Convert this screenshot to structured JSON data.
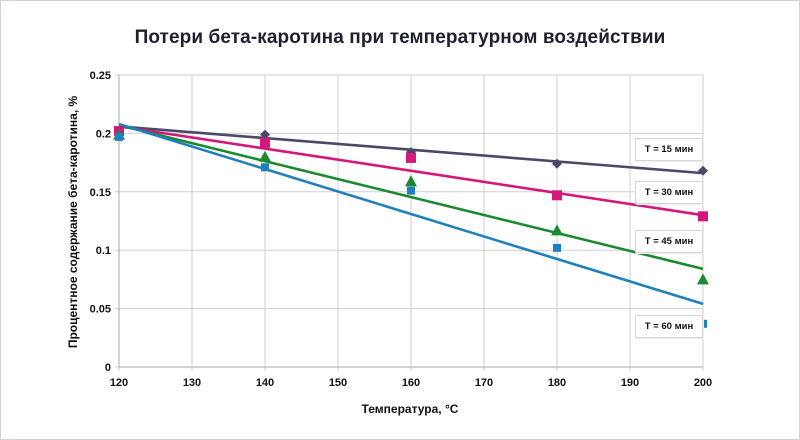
{
  "chart_data": {
    "type": "scatter",
    "title": "Потери бета-каротина при температурном воздействии",
    "xlabel": "Температура, °C",
    "ylabel": "Процентное содержание бета-каротина, %",
    "xlim": [
      120,
      200
    ],
    "ylim": [
      0,
      0.25
    ],
    "x_ticks": [
      "120",
      "130",
      "140",
      "150",
      "160",
      "170",
      "180",
      "190",
      "200"
    ],
    "y_ticks": [
      "0",
      "0.05",
      "0.1",
      "0.15",
      "0.2",
      "0.25"
    ],
    "grid": true,
    "legend_position": "right, inline labels next to series",
    "x": [
      120,
      140,
      160,
      180,
      200
    ],
    "series": [
      {
        "name": "T = 15 мин",
        "marker": "diamond",
        "color": "#4a4a68",
        "values": [
          0.201,
          0.199,
          0.184,
          0.174,
          0.168
        ],
        "trendline": [
          0.206,
          0.166
        ]
      },
      {
        "name": "T = 30 мин",
        "marker": "square",
        "color": "#d4177a",
        "values": [
          0.202,
          0.192,
          0.179,
          0.147,
          0.129
        ],
        "trendline": [
          0.206,
          0.13
        ]
      },
      {
        "name": "T = 45 мин",
        "marker": "triangle",
        "color": "#1a8a30",
        "values": [
          0.199,
          0.18,
          0.159,
          0.117,
          0.075
        ],
        "trendline": [
          0.207,
          0.084
        ]
      },
      {
        "name": "T = 60 мин",
        "marker": "small-square",
        "color": "#1f7fc0",
        "values": [
          0.197,
          0.171,
          0.151,
          0.102,
          0.037
        ],
        "trendline": [
          0.208,
          0.054
        ]
      }
    ]
  }
}
